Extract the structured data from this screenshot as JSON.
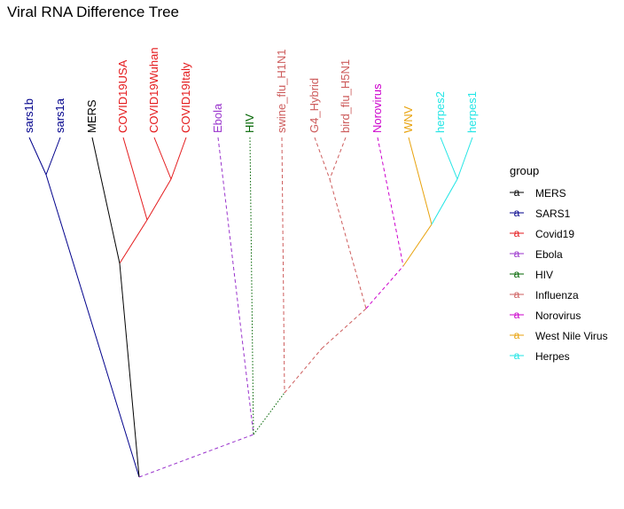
{
  "chart_data": {
    "type": "dendrogram",
    "title": "Viral RNA Difference Tree",
    "legend": {
      "title": "group",
      "placement": "right",
      "glyph": "a",
      "items": [
        {
          "label": "MERS",
          "color": "#000000"
        },
        {
          "label": "SARS1",
          "color": "#00008B"
        },
        {
          "label": "Covid19",
          "color": "#E41A1C"
        },
        {
          "label": "Ebola",
          "color": "#9932CC"
        },
        {
          "label": "HIV",
          "color": "#006400"
        },
        {
          "label": "Influenza",
          "color": "#CD5C5C"
        },
        {
          "label": "Norovirus",
          "color": "#CC00CC"
        },
        {
          "label": "West Nile Virus",
          "color": "#E8A20C"
        },
        {
          "label": "Herpes",
          "color": "#22E5E5"
        }
      ]
    },
    "leaves": [
      {
        "label": "sars1b",
        "group": "SARS1"
      },
      {
        "label": "sars1a",
        "group": "SARS1"
      },
      {
        "label": "MERS",
        "group": "MERS"
      },
      {
        "label": "COVID19USA",
        "group": "Covid19"
      },
      {
        "label": "COVID19Wuhan",
        "group": "Covid19"
      },
      {
        "label": "COVID19Italy",
        "group": "Covid19"
      },
      {
        "label": "Ebola",
        "group": "Ebola"
      },
      {
        "label": "HIV",
        "group": "HIV"
      },
      {
        "label": "swine_flu_H1N1",
        "group": "Influenza"
      },
      {
        "label": "G4_Hybrid",
        "group": "Influenza"
      },
      {
        "label": "bird_flu_H5N1",
        "group": "Influenza"
      },
      {
        "label": "Norovirus",
        "group": "Norovirus"
      },
      {
        "label": "WNV",
        "group": "West Nile Virus"
      },
      {
        "label": "herpes2",
        "group": "Herpes"
      },
      {
        "label": "herpes1",
        "group": "Herpes"
      }
    ],
    "merges": [
      {
        "a": "COVID19Wuhan",
        "b": "COVID19Italy",
        "height": 0.88
      },
      {
        "a": "sars1b",
        "b": "sars1a",
        "height": 0.85
      },
      {
        "a": "herpes2",
        "b": "herpes1",
        "height": 0.83
      },
      {
        "a": "bird_flu_H5N1",
        "b": "G4_Hybrid",
        "height": 0.83
      },
      {
        "a": "COVID19USA",
        "b": "[COVID19Wuhan,COVID19Italy]",
        "height": 0.72
      },
      {
        "a": "WNV",
        "b": "[herpes2,herpes1]",
        "height": 0.7
      },
      {
        "a": "MERS",
        "b": "[COVID19USA,COVID19Wuhan,COVID19Italy]",
        "height": 0.58
      },
      {
        "a": "Norovirus",
        "b": "[WNV,herpes2,herpes1]",
        "height": 0.56
      },
      {
        "a": "G4_Hybrid+bird_flu_H5N1",
        "b": "[Norovirus,WNV,herpes2,herpes1]",
        "height": 0.45
      },
      {
        "a": "swine_flu_H1N1",
        "b": "[G4_Hybrid,bird_flu_H5N1,Norovirus,WNV,herpes2,herpes1]",
        "height": 0.36
      },
      {
        "a": "HIV",
        "b": "[swine_flu_H1N1,...,herpes1]",
        "height": 0.2
      },
      {
        "a": "Ebola",
        "b": "[HIV,...,herpes1]",
        "height": 0.1
      },
      {
        "a": "[sars1b,sars1a,MERS,COVID19...]",
        "b": "[Ebola,...,herpes1]",
        "height": 0.0
      }
    ]
  }
}
